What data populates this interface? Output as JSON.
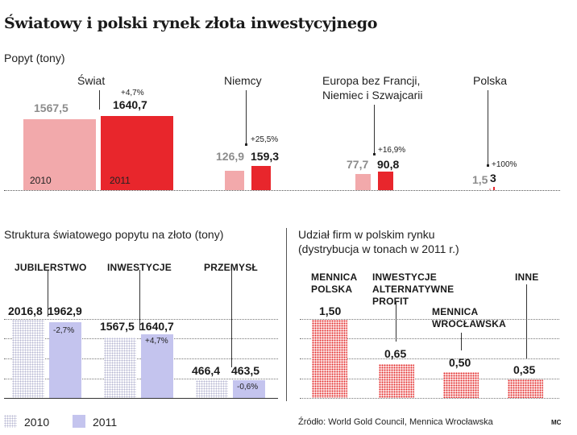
{
  "title": "Światowy i polski rynek złota inwestycyjnego",
  "demand_section": {
    "label": "Popyt (tony)",
    "year_labels": [
      "2010",
      "2011"
    ]
  },
  "structure_section": {
    "label": "Struktura światowego popytu na złoto (tony)"
  },
  "share_section": {
    "label_line1": "Udział firm w polskim rynku",
    "label_line2": "(dystrybucja w tonach w 2011 r.)"
  },
  "legend": {
    "y2010": "2010",
    "y2011": "2011"
  },
  "source": "Źródło: World Gold Council, Mennica Wrocławska",
  "author": "MC",
  "colors": {
    "demand_2010": "#f2a9ab",
    "demand_2011": "#e8262c",
    "structure_2010": "#b6b6d2",
    "structure_2011": "#c4c4ee",
    "share": "#e32a2a"
  },
  "chart_data": [
    {
      "type": "bar",
      "title": "Popyt (tony)",
      "categories": [
        "Świat",
        "Niemcy",
        "Europa bez Francji, Niemiec i Szwajcarii",
        "Polska"
      ],
      "category_labels": [
        [
          "Świat"
        ],
        [
          "Niemcy"
        ],
        [
          "Europa bez Francji,",
          "Niemiec i Szwajcarii"
        ],
        [
          "Polska"
        ]
      ],
      "series": [
        {
          "name": "2010",
          "values": [
            1567.5,
            126.9,
            77.7,
            1.5
          ],
          "labels": [
            "1567,5",
            "126,9",
            "77,7",
            "1,5"
          ]
        },
        {
          "name": "2011",
          "values": [
            1640.7,
            159.3,
            90.8,
            3
          ],
          "labels": [
            "1640,7",
            "159,3",
            "90,8",
            "3"
          ]
        }
      ],
      "changes": [
        "+4,7%",
        "+25,5%",
        "+16,9%",
        "+100%"
      ]
    },
    {
      "type": "bar",
      "title": "Struktura światowego popytu na złoto (tony)",
      "categories": [
        "JUBILERSTWO",
        "INWESTYCJE",
        "PRZEMYSŁ"
      ],
      "series": [
        {
          "name": "2010",
          "values": [
            2016.8,
            1567.5,
            466.4
          ],
          "labels": [
            "2016,8",
            "1567,5",
            "466,4"
          ]
        },
        {
          "name": "2011",
          "values": [
            1962.9,
            1640.7,
            463.5
          ],
          "labels": [
            "1962,9",
            "1640,7",
            "463,5"
          ]
        }
      ],
      "changes": [
        "-2,7%",
        "+4,7%",
        "-0,6%"
      ],
      "grid": true
    },
    {
      "type": "bar",
      "title": "Udział firm w polskim rynku (dystrybucja w tonach w 2011 r.)",
      "categories": [
        "MENNICA POLSKA",
        "INWESTYCJE ALTERNATYWNE PROFIT",
        "MENNICA WROCŁAWSKA",
        "INNE"
      ],
      "category_labels": [
        [
          "MENNICA",
          "POLSKA"
        ],
        [
          "INWESTYCJE",
          "ALTERNATYWNE",
          "PROFIT"
        ],
        [
          "MENNICA",
          "WROCŁAWSKA"
        ],
        [
          "INNE"
        ]
      ],
      "values": [
        1.5,
        0.65,
        0.5,
        0.35
      ],
      "labels": [
        "1,50",
        "0,65",
        "0,50",
        "0,35"
      ],
      "grid": true
    }
  ]
}
